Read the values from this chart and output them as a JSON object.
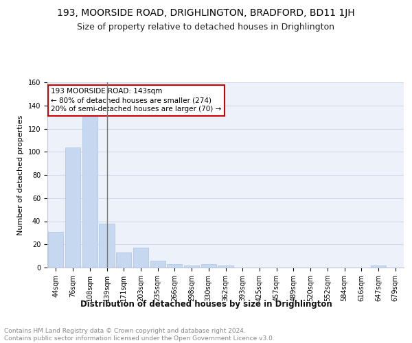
{
  "title": "193, MOORSIDE ROAD, DRIGHLINGTON, BRADFORD, BD11 1JH",
  "subtitle": "Size of property relative to detached houses in Drighlington",
  "xlabel": "Distribution of detached houses by size in Drighlington",
  "ylabel": "Number of detached properties",
  "categories": [
    "44sqm",
    "76sqm",
    "108sqm",
    "139sqm",
    "171sqm",
    "203sqm",
    "235sqm",
    "266sqm",
    "298sqm",
    "330sqm",
    "362sqm",
    "393sqm",
    "425sqm",
    "457sqm",
    "489sqm",
    "520sqm",
    "552sqm",
    "584sqm",
    "616sqm",
    "647sqm",
    "679sqm"
  ],
  "values": [
    31,
    104,
    131,
    38,
    13,
    17,
    6,
    3,
    2,
    3,
    2,
    0,
    0,
    0,
    0,
    0,
    0,
    0,
    0,
    2,
    0
  ],
  "bar_color": "#c5d8f0",
  "bar_edge_color": "#a8c4e0",
  "annotation_line1": "193 MOORSIDE ROAD: 143sqm",
  "annotation_line2": "← 80% of detached houses are smaller (274)",
  "annotation_line3": "20% of semi-detached houses are larger (70) →",
  "annotation_box_facecolor": "#ffffff",
  "annotation_box_edgecolor": "#cc0000",
  "vline_color": "#777777",
  "ylim": [
    0,
    160
  ],
  "yticks": [
    0,
    20,
    40,
    60,
    80,
    100,
    120,
    140,
    160
  ],
  "grid_color": "#d0d8e8",
  "bg_color": "#edf2fa",
  "footer": "Contains HM Land Registry data © Crown copyright and database right 2024.\nContains public sector information licensed under the Open Government Licence v3.0.",
  "title_fontsize": 10,
  "subtitle_fontsize": 9,
  "xlabel_fontsize": 8.5,
  "ylabel_fontsize": 8,
  "tick_fontsize": 7,
  "annotation_fontsize": 7.5,
  "footer_fontsize": 6.5
}
